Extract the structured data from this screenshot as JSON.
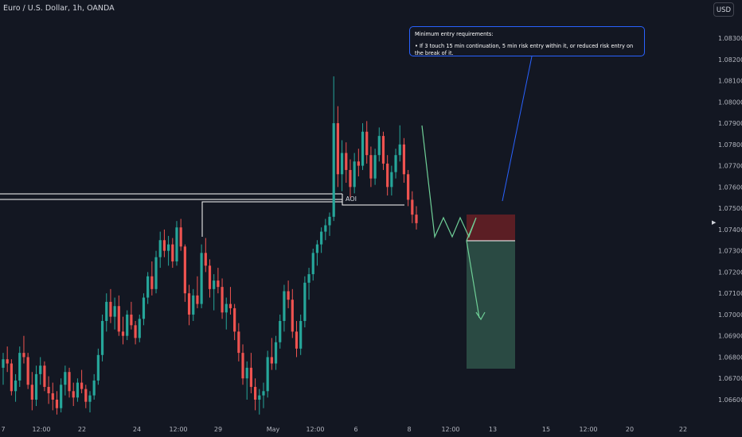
{
  "header": {
    "symbol_title": "Euro / U.S. Dollar, 1h, OANDA",
    "currency_button": "USD"
  },
  "colors": {
    "background": "#131722",
    "up": "#26a69a",
    "down": "#ef5350",
    "note_border": "#2962ff",
    "stop_zone": "#5b1e24",
    "target_zone": "#2a4a43",
    "projection": "#6fcf97"
  },
  "annotation": {
    "heading": "Minimum entry requirements:",
    "bullet": "• If 3 touch 15 min continuation, 5 min risk entry within it, or reduced risk entry on the break of it."
  },
  "aoi_label": "AOI",
  "chart_data": {
    "type": "candlestick",
    "title": "Euro / U.S. Dollar, 1h, OANDA",
    "ylim": [
      1.06545,
      1.08395
    ],
    "y_ticks": [
      "1.08300",
      "1.08200",
      "1.08100",
      "1.08000",
      "1.07900",
      "1.07800",
      "1.07700",
      "1.07600",
      "1.07500",
      "1.07400",
      "1.07300",
      "1.07200",
      "1.07100",
      "1.07000",
      "1.06900",
      "1.06800",
      "1.06700",
      "1.06600"
    ],
    "x_ticks": [
      "7",
      "12:00",
      "22",
      "24",
      "12:00",
      "29",
      "May",
      "12:00",
      "6",
      "8",
      "12:00",
      "13",
      "15",
      "12:00",
      "20",
      "22"
    ],
    "candles": [
      [
        1.0675,
        1.0682,
        1.0667,
        1.0679
      ],
      [
        1.0679,
        1.0685,
        1.0673,
        1.0677
      ],
      [
        1.0677,
        1.0679,
        1.0662,
        1.0664
      ],
      [
        1.0664,
        1.0672,
        1.0659,
        1.0669
      ],
      [
        1.0669,
        1.0685,
        1.0666,
        1.0682
      ],
      [
        1.0682,
        1.069,
        1.0677,
        1.068
      ],
      [
        1.068,
        1.0682,
        1.0665,
        1.0667
      ],
      [
        1.0667,
        1.0673,
        1.0655,
        1.066
      ],
      [
        1.066,
        1.0676,
        1.0657,
        1.0672
      ],
      [
        1.0672,
        1.068,
        1.0667,
        1.0676
      ],
      [
        1.0676,
        1.0678,
        1.0664,
        1.0666
      ],
      [
        1.0666,
        1.0671,
        1.0658,
        1.0663
      ],
      [
        1.0663,
        1.0668,
        1.0655,
        1.066
      ],
      [
        1.066,
        1.0664,
        1.0653,
        1.0656
      ],
      [
        1.0656,
        1.067,
        1.0654,
        1.0667
      ],
      [
        1.0667,
        1.0676,
        1.0662,
        1.0673
      ],
      [
        1.0673,
        1.0675,
        1.0661,
        1.0664
      ],
      [
        1.0664,
        1.0668,
        1.0657,
        1.0661
      ],
      [
        1.0661,
        1.067,
        1.0659,
        1.0668
      ],
      [
        1.0668,
        1.0674,
        1.0663,
        1.0665
      ],
      [
        1.0665,
        1.0667,
        1.0656,
        1.0659
      ],
      [
        1.0659,
        1.0664,
        1.0654,
        1.0662
      ],
      [
        1.0662,
        1.0672,
        1.066,
        1.0669
      ],
      [
        1.0669,
        1.0684,
        1.0667,
        1.0681
      ],
      [
        1.0681,
        1.07,
        1.0678,
        1.0697
      ],
      [
        1.0697,
        1.071,
        1.0692,
        1.0706
      ],
      [
        1.0706,
        1.0712,
        1.0696,
        1.0699
      ],
      [
        1.0699,
        1.0708,
        1.0693,
        1.0704
      ],
      [
        1.0704,
        1.0709,
        1.069,
        1.0692
      ],
      [
        1.0692,
        1.0699,
        1.0686,
        1.069
      ],
      [
        1.069,
        1.0702,
        1.0688,
        1.07
      ],
      [
        1.07,
        1.0706,
        1.0693,
        1.0695
      ],
      [
        1.0695,
        1.0697,
        1.0686,
        1.0689
      ],
      [
        1.0689,
        1.07,
        1.0687,
        1.0698
      ],
      [
        1.0698,
        1.071,
        1.0695,
        1.0708
      ],
      [
        1.0708,
        1.072,
        1.0705,
        1.0718
      ],
      [
        1.0718,
        1.0725,
        1.0709,
        1.0712
      ],
      [
        1.0712,
        1.073,
        1.071,
        1.0727
      ],
      [
        1.0727,
        1.0739,
        1.0722,
        1.0735
      ],
      [
        1.0735,
        1.074,
        1.0727,
        1.073
      ],
      [
        1.073,
        1.0737,
        1.0723,
        1.0733
      ],
      [
        1.0733,
        1.0736,
        1.0722,
        1.0725
      ],
      [
        1.0725,
        1.0744,
        1.0723,
        1.0741
      ],
      [
        1.0741,
        1.0745,
        1.073,
        1.0732
      ],
      [
        1.0732,
        1.0733,
        1.0706,
        1.071
      ],
      [
        1.071,
        1.0714,
        1.0695,
        1.07
      ],
      [
        1.07,
        1.0712,
        1.0697,
        1.0709
      ],
      [
        1.0709,
        1.0718,
        1.0703,
        1.0705
      ],
      [
        1.0705,
        1.0733,
        1.0703,
        1.0729
      ],
      [
        1.0729,
        1.0736,
        1.072,
        1.0723
      ],
      [
        1.0723,
        1.0726,
        1.0708,
        1.0712
      ],
      [
        1.0712,
        1.0719,
        1.0702,
        1.0716
      ],
      [
        1.0716,
        1.0722,
        1.071,
        1.0713
      ],
      [
        1.0713,
        1.0717,
        1.0698,
        1.0701
      ],
      [
        1.0701,
        1.0708,
        1.0693,
        1.0705
      ],
      [
        1.0705,
        1.0713,
        1.07,
        1.0703
      ],
      [
        1.0703,
        1.0705,
        1.0688,
        1.0692
      ],
      [
        1.0692,
        1.0696,
        1.0678,
        1.0682
      ],
      [
        1.0682,
        1.0686,
        1.0667,
        1.067
      ],
      [
        1.067,
        1.0678,
        1.066,
        1.0675
      ],
      [
        1.0675,
        1.0682,
        1.0663,
        1.0666
      ],
      [
        1.0666,
        1.067,
        1.0655,
        1.066
      ],
      [
        1.066,
        1.0665,
        1.0653,
        1.0662
      ],
      [
        1.0662,
        1.0668,
        1.0656,
        1.0664
      ],
      [
        1.0664,
        1.0683,
        1.0661,
        1.068
      ],
      [
        1.068,
        1.0689,
        1.0674,
        1.0677
      ],
      [
        1.0677,
        1.069,
        1.0674,
        1.0687
      ],
      [
        1.0687,
        1.07,
        1.0684,
        1.0697
      ],
      [
        1.0697,
        1.0714,
        1.0692,
        1.0711
      ],
      [
        1.0711,
        1.0716,
        1.0703,
        1.0707
      ],
      [
        1.0707,
        1.0712,
        1.0689,
        1.0692
      ],
      [
        1.0692,
        1.0697,
        1.068,
        1.0684
      ],
      [
        1.0684,
        1.07,
        1.0681,
        1.0697
      ],
      [
        1.0697,
        1.0718,
        1.0694,
        1.0715
      ],
      [
        1.0715,
        1.0722,
        1.0707,
        1.0719
      ],
      [
        1.0719,
        1.0731,
        1.0716,
        1.0729
      ],
      [
        1.0729,
        1.0735,
        1.0723,
        1.0733
      ],
      [
        1.0733,
        1.0741,
        1.0729,
        1.0739
      ],
      [
        1.0739,
        1.0745,
        1.0735,
        1.0742
      ],
      [
        1.0742,
        1.0748,
        1.0737,
        1.0746
      ],
      [
        1.0746,
        1.0812,
        1.0744,
        1.079
      ],
      [
        1.079,
        1.0798,
        1.076,
        1.0766
      ],
      [
        1.0766,
        1.0782,
        1.0758,
        1.0776
      ],
      [
        1.0776,
        1.0781,
        1.0762,
        1.0768
      ],
      [
        1.0768,
        1.0773,
        1.0755,
        1.076
      ],
      [
        1.076,
        1.0776,
        1.0757,
        1.0772
      ],
      [
        1.0772,
        1.0778,
        1.0765,
        1.077
      ],
      [
        1.077,
        1.079,
        1.0768,
        1.0786
      ],
      [
        1.0786,
        1.0791,
        1.0771,
        1.0775
      ],
      [
        1.0775,
        1.0779,
        1.076,
        1.0764
      ],
      [
        1.0764,
        1.0778,
        1.0761,
        1.0775
      ],
      [
        1.0775,
        1.0788,
        1.0772,
        1.0784
      ],
      [
        1.0784,
        1.0786,
        1.0768,
        1.0771
      ],
      [
        1.0771,
        1.0775,
        1.0756,
        1.076
      ],
      [
        1.076,
        1.077,
        1.0756,
        1.0767
      ],
      [
        1.0767,
        1.0778,
        1.0764,
        1.0775
      ],
      [
        1.0775,
        1.0789,
        1.0772,
        1.078
      ],
      [
        1.078,
        1.0783,
        1.0762,
        1.0766
      ],
      [
        1.0766,
        1.0768,
        1.0751,
        1.0754
      ],
      [
        1.0754,
        1.0758,
        1.0743,
        1.0747
      ],
      [
        1.0747,
        1.0751,
        1.074,
        1.0743
      ]
    ]
  }
}
